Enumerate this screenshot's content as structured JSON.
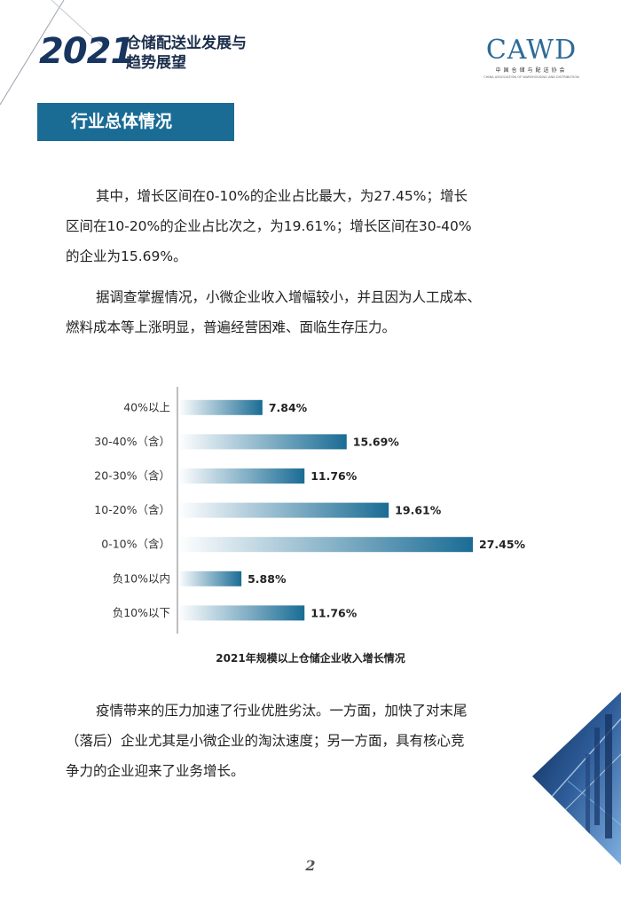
{
  "header": {
    "year": "2021",
    "title_line1": "仓储配送业发展与",
    "title_line2": "趋势展望",
    "logo": "CAWD",
    "logo_cn": "中国仓储与配送协会",
    "logo_en": "CHINA ASSOCIATION OF WAREHOUSING AND DISTRIBUTION"
  },
  "section_title": "行业总体情况",
  "paragraphs": {
    "p1_l1": "其中，增长区间在0-10%的企业占比最大，为27.45%；增长",
    "p1_l2": "区间在10-20%的企业占比次之，为19.61%；增长区间在30-40%",
    "p1_l3": "的企业为15.69%。",
    "p2_l1": "据调查掌握情况，小微企业收入增幅较小，并且因为人工成本、",
    "p2_l2": "燃料成本等上涨明显，普遍经营困难、面临生存压力。",
    "p3_l1": "疫情带来的压力加速了行业优胜劣汰。一方面，加快了对末尾",
    "p3_l2": "（落后）企业尤其是小微企业的淘汰速度；另一方面，具有核心竞",
    "p3_l3": "争力的企业迎来了业务增长。"
  },
  "chart_data": {
    "type": "bar",
    "orientation": "horizontal",
    "title": "2021年规模以上仓储企业收入增长情况",
    "categories": [
      "40%以上",
      "30-40%（含）",
      "20-30%（含）",
      "10-20%（含）",
      "0-10%（含）",
      "负10%以内",
      "负10%以下"
    ],
    "values": [
      7.84,
      15.69,
      11.76,
      19.61,
      27.45,
      5.88,
      11.76
    ],
    "value_labels": [
      "7.84%",
      "15.69%",
      "11.76%",
      "19.61%",
      "27.45%",
      "5.88%",
      "11.76%"
    ],
    "xlim": [
      0,
      30
    ],
    "grid": false,
    "colors": {
      "bar_end": "#1a6c95",
      "bar_start": "#ffffff",
      "axis": "#bdbdbd"
    }
  },
  "page_number": "2"
}
